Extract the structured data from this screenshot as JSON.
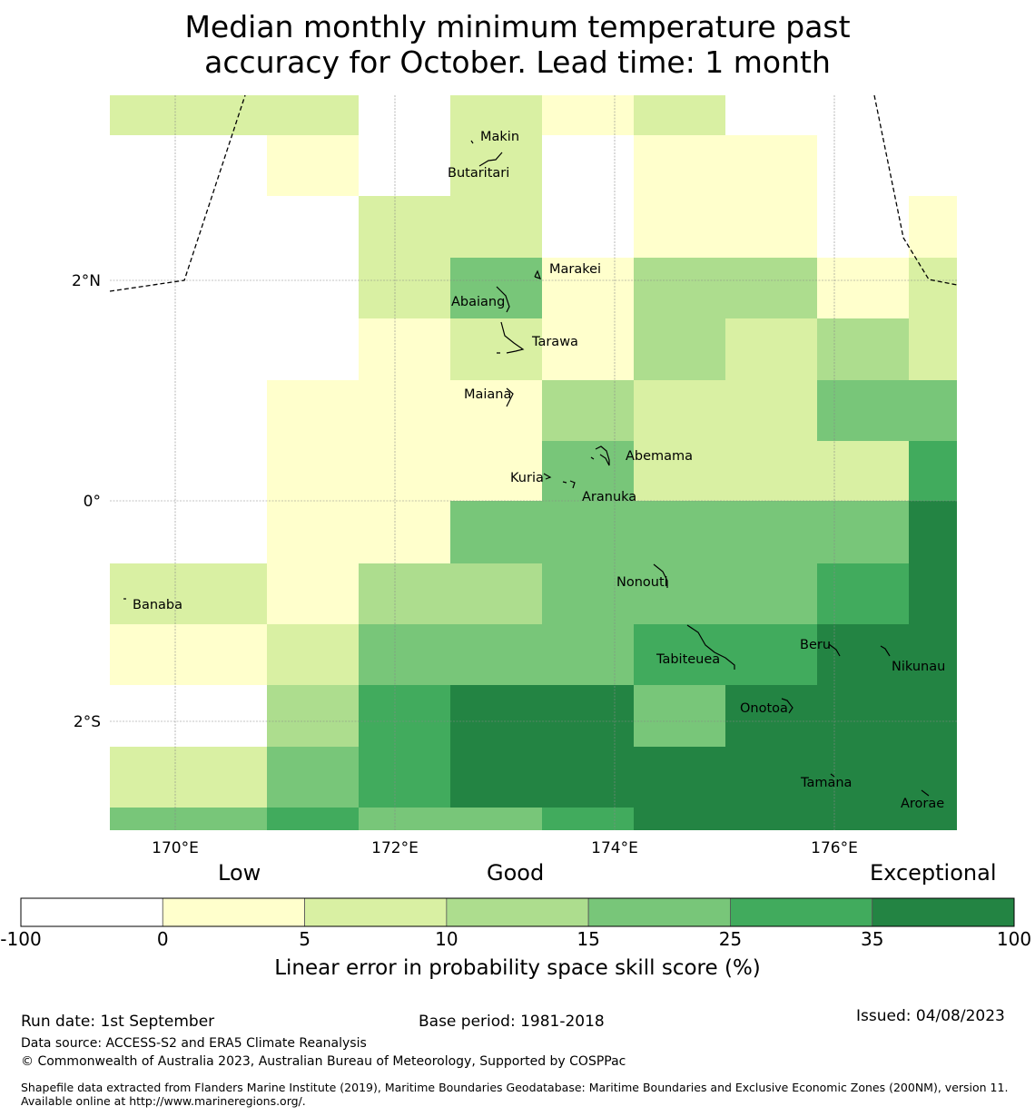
{
  "title_line1": "Median monthly minimum temperature past",
  "title_line2": "accuracy for October. Lead time: 1 month",
  "map": {
    "lon_ticks": [
      "170°E",
      "172°E",
      "174°E",
      "176°E"
    ],
    "lat_ticks": [
      "2°N",
      "0°",
      "2°S"
    ],
    "colors": [
      "#ffffff",
      "#ffffcc",
      "#d9f0a3",
      "#addd8e",
      "#78c679",
      "#41ab5d",
      "#238443"
    ],
    "grid": [
      [
        2,
        2,
        0,
        2,
        1,
        2,
        0,
        0,
        0
      ],
      [
        0,
        1,
        0,
        2,
        0,
        1,
        1,
        0,
        0
      ],
      [
        0,
        0,
        2,
        2,
        0,
        1,
        1,
        0,
        1
      ],
      [
        0,
        0,
        2,
        4,
        1,
        3,
        3,
        1,
        2
      ],
      [
        0,
        0,
        1,
        2,
        1,
        3,
        2,
        3,
        2
      ],
      [
        0,
        1,
        1,
        1,
        3,
        2,
        2,
        4,
        4
      ],
      [
        0,
        1,
        1,
        1,
        4,
        2,
        2,
        2,
        5
      ],
      [
        0,
        1,
        1,
        4,
        4,
        4,
        4,
        4,
        6
      ],
      [
        2,
        1,
        3,
        3,
        4,
        4,
        4,
        5,
        6
      ],
      [
        1,
        2,
        4,
        4,
        4,
        5,
        5,
        6,
        6
      ],
      [
        0,
        3,
        5,
        6,
        6,
        4,
        6,
        6,
        6
      ],
      [
        2,
        4,
        5,
        6,
        6,
        6,
        6,
        6,
        6
      ],
      [
        4,
        5,
        4,
        4,
        5,
        6,
        6,
        6,
        6
      ]
    ],
    "grid_left_col": [
      2,
      0,
      0,
      0,
      0,
      0,
      0,
      0,
      2,
      1,
      0,
      2,
      4
    ],
    "islands": [
      "Makin",
      "Butaritari",
      "Marakei",
      "Abaiang",
      "Tarawa",
      "Maiana",
      "Abemama",
      "Kuria",
      "Aranuka",
      "Nonouti",
      "Banaba",
      "Beru",
      "Tabiteuea",
      "Nikunau",
      "Onotoa",
      "Tamana",
      "Arorae"
    ]
  },
  "categories": {
    "low": "Low",
    "good": "Good",
    "exceptional": "Exceptional"
  },
  "colorbar": {
    "ticks": [
      "-100",
      "0",
      "5",
      "10",
      "15",
      "25",
      "35",
      "100"
    ],
    "colors": [
      "#ffffff",
      "#ffffcc",
      "#d9f0a3",
      "#addd8e",
      "#78c679",
      "#41ab5d",
      "#238443"
    ],
    "title": "Linear error in probability space skill score (%)"
  },
  "footer": {
    "run_date": "Run date: 1st September",
    "base_period": "Base period: 1981-2018",
    "issued": "Issued: 04/08/2023",
    "data_source": "Data source: ACCESS-S2 and ERA5 Climate Reanalysis",
    "copyright": "© Commonwealth of Australia 2023, Australian Bureau of Meteorology, Supported by COSPPac",
    "shapefile": "Shapefile data extracted from Flanders Marine Institute (2019), Maritime Boundaries Geodatabase: Maritime Boundaries and Exclusive Economic Zones (200NM), version 11. Available online at http://www.marineregions.org/."
  }
}
